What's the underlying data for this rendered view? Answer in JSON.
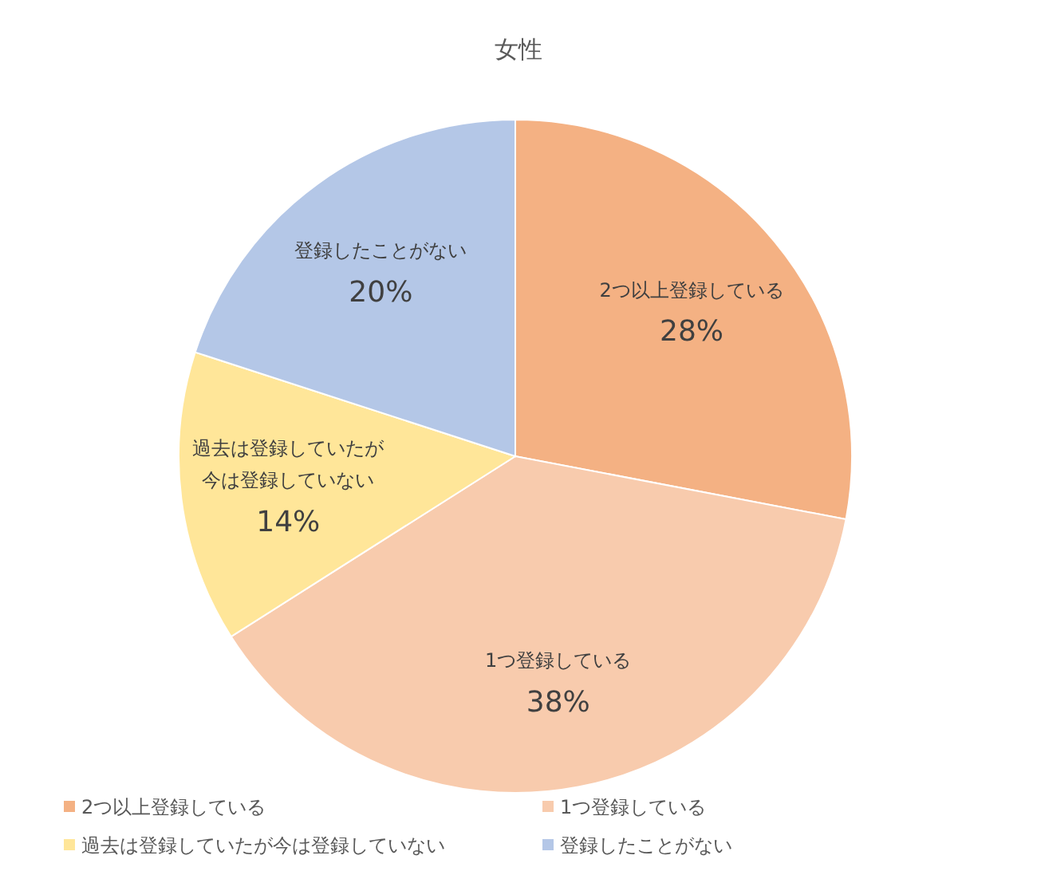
{
  "chart_data": {
    "type": "pie",
    "title": "女性",
    "categories": [
      "2つ以上登録している",
      "1つ登録している",
      "過去は登録していたが今は登録していない",
      "登録したことがない"
    ],
    "values": [
      28,
      38,
      14,
      20
    ],
    "value_labels": [
      "28%",
      "38%",
      "14%",
      "20%"
    ],
    "colors": [
      "#f4b183",
      "#f8cbad",
      "#ffe699",
      "#b4c7e7"
    ],
    "legend": "bottom"
  }
}
